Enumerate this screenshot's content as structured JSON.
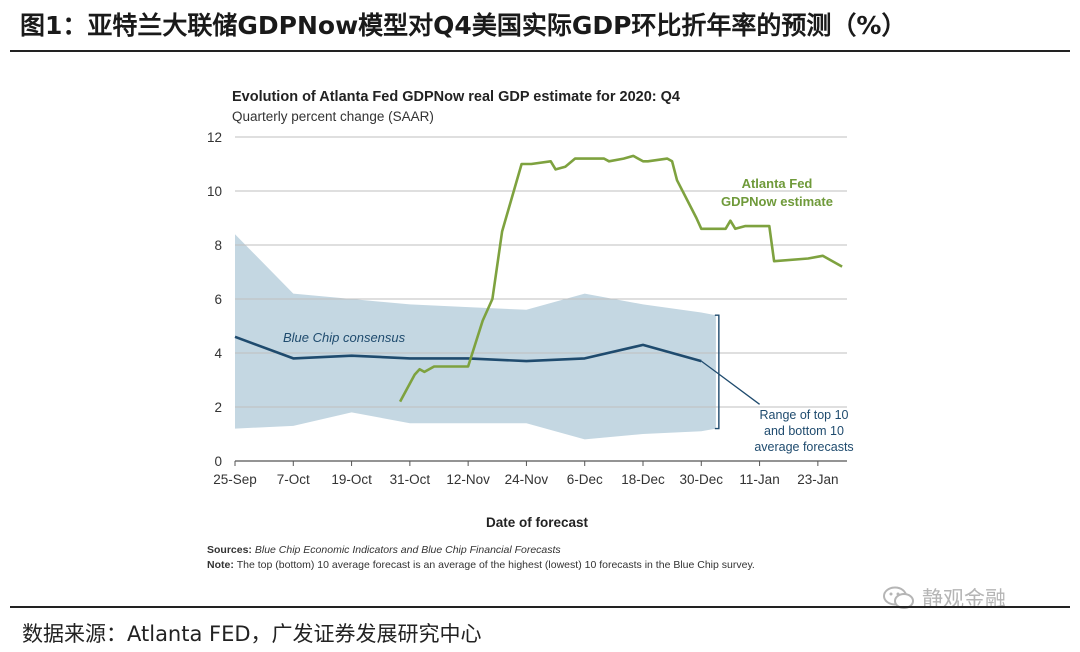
{
  "figure": {
    "title": "图1：亚特兰大联储GDPNow模型对Q4美国实际GDP环比折年率的预测（%）",
    "source": "数据来源：Atlanta FED，广发证券发展研究中心",
    "watermark": "静观金融"
  },
  "colors": {
    "gdpnow": "#7ea23f",
    "consensus": "#1f4b6e",
    "range_fill": "#c4d7e2",
    "grid": "#bfbfbf"
  },
  "chart_data": {
    "type": "line",
    "title": "Evolution of Atlanta Fed GDPNow real GDP estimate for 2020: Q4",
    "subtitle": "Quarterly percent change (SAAR)",
    "xlabel": "Date of forecast",
    "ylabel": "",
    "ylim": [
      0,
      12
    ],
    "yticks": [
      0,
      2,
      4,
      6,
      8,
      10,
      12
    ],
    "x_unit": "days since 25-Sep-2020",
    "xlim": [
      0,
      126
    ],
    "xticks": [
      {
        "label": "25-Sep",
        "x": 0
      },
      {
        "label": "7-Oct",
        "x": 12
      },
      {
        "label": "19-Oct",
        "x": 24
      },
      {
        "label": "31-Oct",
        "x": 36
      },
      {
        "label": "12-Nov",
        "x": 48
      },
      {
        "label": "24-Nov",
        "x": 60
      },
      {
        "label": "6-Dec",
        "x": 72
      },
      {
        "label": "18-Dec",
        "x": 84
      },
      {
        "label": "30-Dec",
        "x": 96
      },
      {
        "label": "11-Jan",
        "x": 108
      },
      {
        "label": "23-Jan",
        "x": 120
      }
    ],
    "grid": true,
    "series": [
      {
        "name": "Atlanta Fed GDPNow estimate",
        "label_lines": [
          "Atlanta Fed",
          "GDPNow estimate"
        ],
        "x": [
          34,
          37,
          38,
          39,
          41,
          44,
          48,
          51,
          53,
          55,
          59,
          60,
          61,
          65,
          66,
          68,
          70,
          71,
          72,
          76,
          77,
          80,
          82,
          84,
          85,
          89,
          90,
          91,
          95,
          96,
          101,
          102,
          103,
          105,
          109,
          110,
          111,
          118,
          121,
          125
        ],
        "values": [
          2.2,
          3.2,
          3.4,
          3.3,
          3.5,
          3.5,
          3.5,
          5.2,
          6.0,
          8.5,
          11.0,
          11.0,
          11.0,
          11.1,
          10.8,
          10.9,
          11.2,
          11.2,
          11.2,
          11.2,
          11.1,
          11.2,
          11.3,
          11.1,
          11.1,
          11.2,
          11.1,
          10.4,
          9.0,
          8.6,
          8.6,
          8.9,
          8.6,
          8.7,
          8.7,
          8.7,
          7.4,
          7.5,
          7.6,
          7.2
        ]
      },
      {
        "name": "Blue Chip consensus",
        "label": "Blue Chip consensus",
        "x": [
          0,
          12,
          24,
          36,
          48,
          60,
          72,
          84,
          96,
          99,
          108
        ],
        "values": [
          4.6,
          3.8,
          3.9,
          3.8,
          3.8,
          3.7,
          3.8,
          4.3,
          3.7,
          3.3,
          2.1
        ]
      }
    ],
    "range_band": {
      "name": "Range of top 10 and bottom 10 average forecasts",
      "label_lines": [
        "Range of top 10",
        "and bottom 10",
        "average forecasts"
      ],
      "x": [
        0,
        12,
        24,
        36,
        48,
        60,
        72,
        84,
        96,
        99
      ],
      "upper": [
        8.4,
        6.2,
        6.0,
        5.8,
        5.7,
        5.6,
        6.2,
        5.8,
        5.5,
        5.4
      ],
      "lower": [
        1.2,
        1.3,
        1.8,
        1.4,
        1.4,
        1.4,
        0.8,
        1.0,
        1.1,
        1.2
      ]
    },
    "notes": {
      "sources_label": "Sources:",
      "sources_text": "Blue Chip Economic Indicators and Blue Chip Financial Forecasts",
      "note_label": "Note:",
      "note_text": "The top (bottom) 10 average forecast is an average of the highest (lowest) 10 forecasts in the Blue Chip survey."
    }
  }
}
